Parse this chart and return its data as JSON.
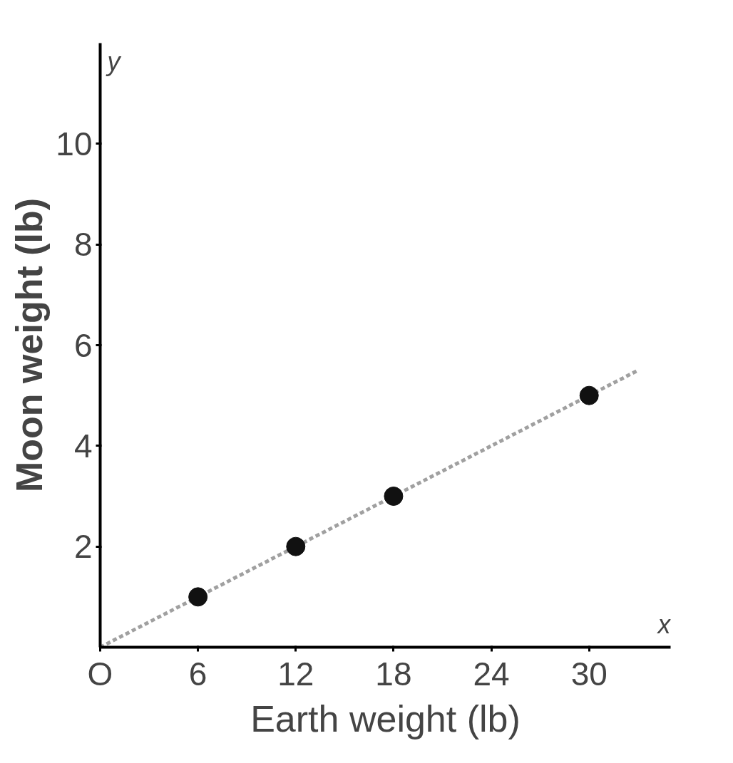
{
  "chart_data": {
    "type": "scatter",
    "xlabel": "Earth weight (lb)",
    "ylabel": "Moon weight (lb)",
    "xlim": [
      0,
      35
    ],
    "ylim": [
      0,
      12
    ],
    "xticks": [
      {
        "value": 0,
        "label": "O"
      },
      6,
      12,
      18,
      24,
      30
    ],
    "yticks": [
      2,
      4,
      6,
      8,
      10
    ],
    "grid": false,
    "annotations": [
      "x",
      "y"
    ],
    "series": [
      {
        "type": "line",
        "color": "#a0a0a0",
        "line_style": "dashed",
        "x": [
          0,
          33
        ],
        "values": [
          0,
          5.5
        ]
      },
      {
        "marker": "circle",
        "color": "#111111",
        "x": [
          6,
          12,
          18,
          30
        ],
        "values": [
          1,
          2,
          3,
          5
        ]
      }
    ]
  }
}
